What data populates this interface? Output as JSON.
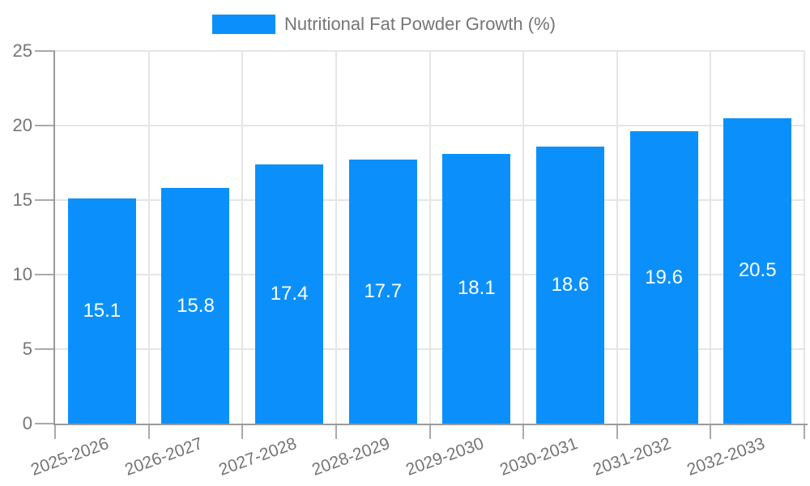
{
  "chart_data": {
    "type": "bar",
    "title": "Nutritional Fat Powder Growth (%)",
    "series_name": "Nutritional Fat Powder Growth (%)",
    "categories": [
      "2025-2026",
      "2026-2027",
      "2027-2028",
      "2028-2029",
      "2029-2030",
      "2030-2031",
      "2031-2032",
      "2032-2033"
    ],
    "values": [
      15.1,
      15.8,
      17.4,
      17.7,
      18.1,
      18.6,
      19.6,
      20.5
    ],
    "xlabel": "",
    "ylabel": "",
    "ylim": [
      0,
      25
    ],
    "yticks": [
      0,
      5,
      10,
      15,
      20,
      25
    ],
    "grid": true,
    "legend_position": "top-center",
    "bar_color": "#0b90fb",
    "value_label_color": "#ffffff",
    "axis_text_color": "#757575",
    "grid_color": "#e5e5e5",
    "axis_line_color": "#9a9a9a",
    "tick_color": "#aaaaaa"
  }
}
